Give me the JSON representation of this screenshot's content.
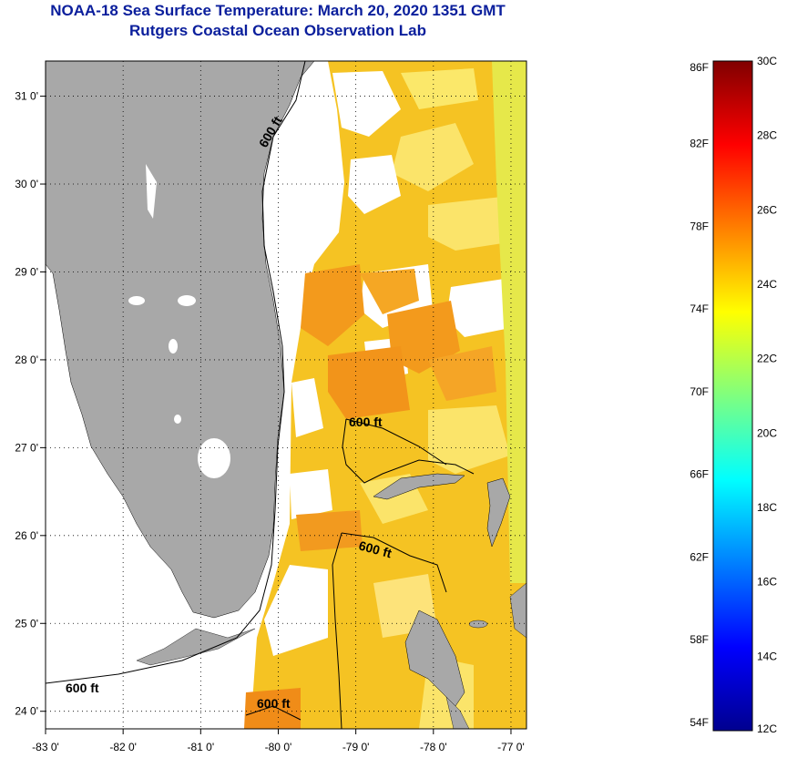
{
  "header": {
    "title": "NOAA-18 Sea Surface Temperature:  March 20, 2020 1351 GMT",
    "subtitle": "Rutgers Coastal Ocean Observation Lab"
  },
  "map": {
    "region": "Florida and Bahamas",
    "lon_range": [
      -83,
      -76.8
    ],
    "lat_range": [
      23.8,
      31.4
    ],
    "lon_ticks": [
      "-83 0'",
      "-82 0'",
      "-81 0'",
      "-80 0'",
      "-79 0'",
      "-78 0'",
      "-77 0'"
    ],
    "lat_ticks": [
      "31 0'",
      "30 0'",
      "29 0'",
      "28 0'",
      "27 0'",
      "26 0'",
      "25 0'",
      "24 0'"
    ],
    "grid": true,
    "land_color": "#a8a8a8",
    "cloud_color": "#ffffff",
    "contour_label": "600 ft"
  },
  "colorbar": {
    "fahrenheit_labels": [
      "86F",
      "82F",
      "78F",
      "74F",
      "70F",
      "66F",
      "62F",
      "58F",
      "54F"
    ],
    "celsius_labels": [
      "30C",
      "28C",
      "26C",
      "24C",
      "22C",
      "20C",
      "18C",
      "16C",
      "14C",
      "12C"
    ],
    "range_c": [
      12,
      30
    ],
    "colormap": "jet"
  }
}
